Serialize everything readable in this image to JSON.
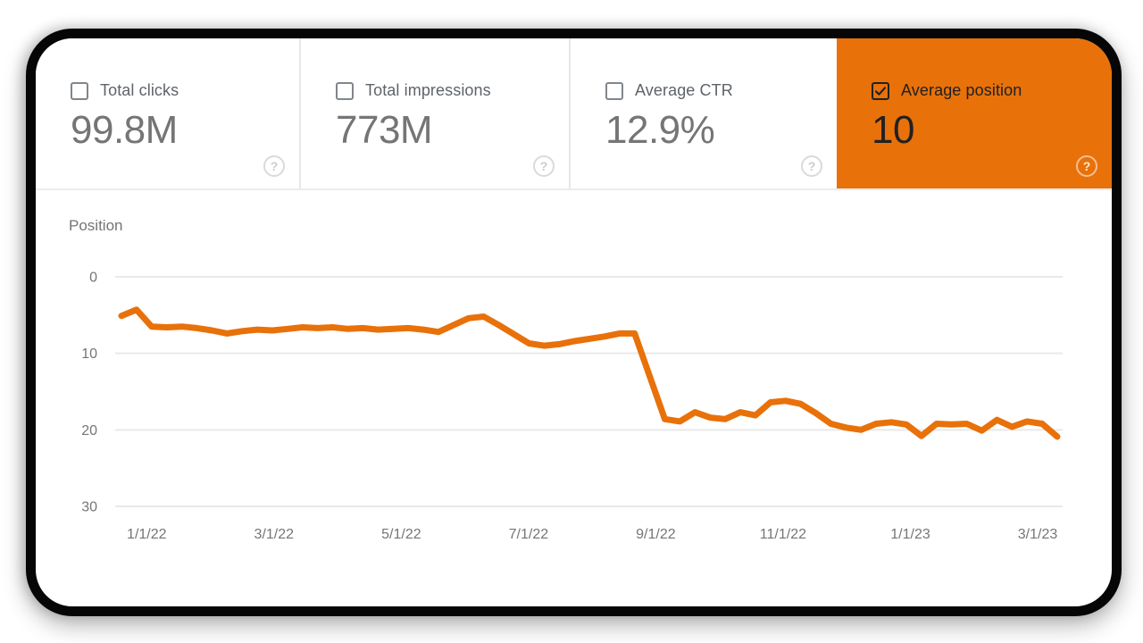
{
  "metrics": [
    {
      "label": "Total clicks",
      "value": "99.8M",
      "checked": false,
      "selected": false
    },
    {
      "label": "Total impressions",
      "value": "773M",
      "checked": false,
      "selected": false
    },
    {
      "label": "Average CTR",
      "value": "12.9%",
      "checked": false,
      "selected": false
    },
    {
      "label": "Average position",
      "value": "10",
      "checked": true,
      "selected": true
    }
  ],
  "icons": {
    "help_glyph": "?"
  },
  "colors": {
    "selected_card_background": "#e8710a",
    "line": "#e8710a",
    "metric_label": "#5f6368",
    "metric_value": "#757575",
    "selected_text": "#212121",
    "gridline": "#e9e9e9",
    "axis_label": "#757575",
    "frame": "#060606"
  },
  "chart_data": {
    "type": "line",
    "title": "Position",
    "legend": "none",
    "grid": "horizontal",
    "y_axis": {
      "label": "Position",
      "ticks": [
        0,
        10,
        20,
        30
      ],
      "max": 30,
      "inverted": true
    },
    "x_axis": {
      "unit": "weekly",
      "ticks": [
        {
          "label": "1/1/22",
          "f": 0.027
        },
        {
          "label": "3/1/22",
          "f": 0.163
        },
        {
          "label": "5/1/22",
          "f": 0.299
        },
        {
          "label": "7/1/22",
          "f": 0.435
        },
        {
          "label": "9/1/22",
          "f": 0.571
        },
        {
          "label": "11/1/22",
          "f": 0.707
        },
        {
          "label": "1/1/23",
          "f": 0.843
        },
        {
          "label": "3/1/23",
          "f": 0.979
        }
      ]
    },
    "series": [
      {
        "name": "Average position",
        "color": "#e8710a",
        "values": [
          5.1,
          4.3,
          6.5,
          6.6,
          6.5,
          6.7,
          7.0,
          7.4,
          7.1,
          6.9,
          7.0,
          6.8,
          6.6,
          6.7,
          6.6,
          6.8,
          6.7,
          6.9,
          6.8,
          6.7,
          6.9,
          7.2,
          6.3,
          5.4,
          5.2,
          6.3,
          7.5,
          8.7,
          9.0,
          8.8,
          8.4,
          8.1,
          7.8,
          7.4,
          7.4,
          13.0,
          18.6,
          18.9,
          17.7,
          18.4,
          18.6,
          17.7,
          18.1,
          16.4,
          16.2,
          16.6,
          17.8,
          19.2,
          19.7,
          20.0,
          19.2,
          19.0,
          19.3,
          20.8,
          19.2,
          19.3,
          19.2,
          20.1,
          18.7,
          19.6,
          18.9,
          19.2,
          20.9
        ]
      }
    ]
  }
}
